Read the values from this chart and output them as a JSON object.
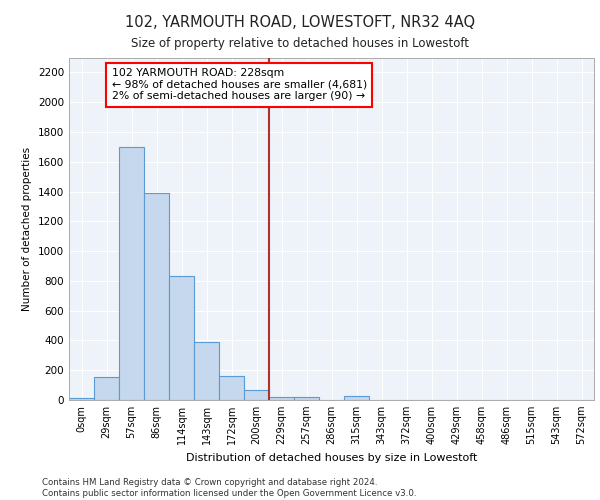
{
  "title": "102, YARMOUTH ROAD, LOWESTOFT, NR32 4AQ",
  "subtitle": "Size of property relative to detached houses in Lowestoft",
  "xlabel": "Distribution of detached houses by size in Lowestoft",
  "ylabel": "Number of detached properties",
  "bar_labels": [
    "0sqm",
    "29sqm",
    "57sqm",
    "86sqm",
    "114sqm",
    "143sqm",
    "172sqm",
    "200sqm",
    "229sqm",
    "257sqm",
    "286sqm",
    "315sqm",
    "343sqm",
    "372sqm",
    "400sqm",
    "429sqm",
    "458sqm",
    "486sqm",
    "515sqm",
    "543sqm",
    "572sqm"
  ],
  "bar_values": [
    15,
    155,
    1700,
    1390,
    830,
    390,
    160,
    65,
    20,
    20,
    0,
    25,
    0,
    0,
    0,
    0,
    0,
    0,
    0,
    0,
    0
  ],
  "bar_color": "#c5d8ed",
  "bar_edge_color": "#5b9bd5",
  "property_line_bin": 8.0,
  "annotation_text": "102 YARMOUTH ROAD: 228sqm\n← 98% of detached houses are smaller (4,681)\n2% of semi-detached houses are larger (90) →",
  "ylim": [
    0,
    2300
  ],
  "yticks": [
    0,
    200,
    400,
    600,
    800,
    1000,
    1200,
    1400,
    1600,
    1800,
    2000,
    2200
  ],
  "background_color": "#ffffff",
  "plot_bg_color": "#eef2f9",
  "grid_color": "#ffffff",
  "footer_line1": "Contains HM Land Registry data © Crown copyright and database right 2024.",
  "footer_line2": "Contains public sector information licensed under the Open Government Licence v3.0."
}
